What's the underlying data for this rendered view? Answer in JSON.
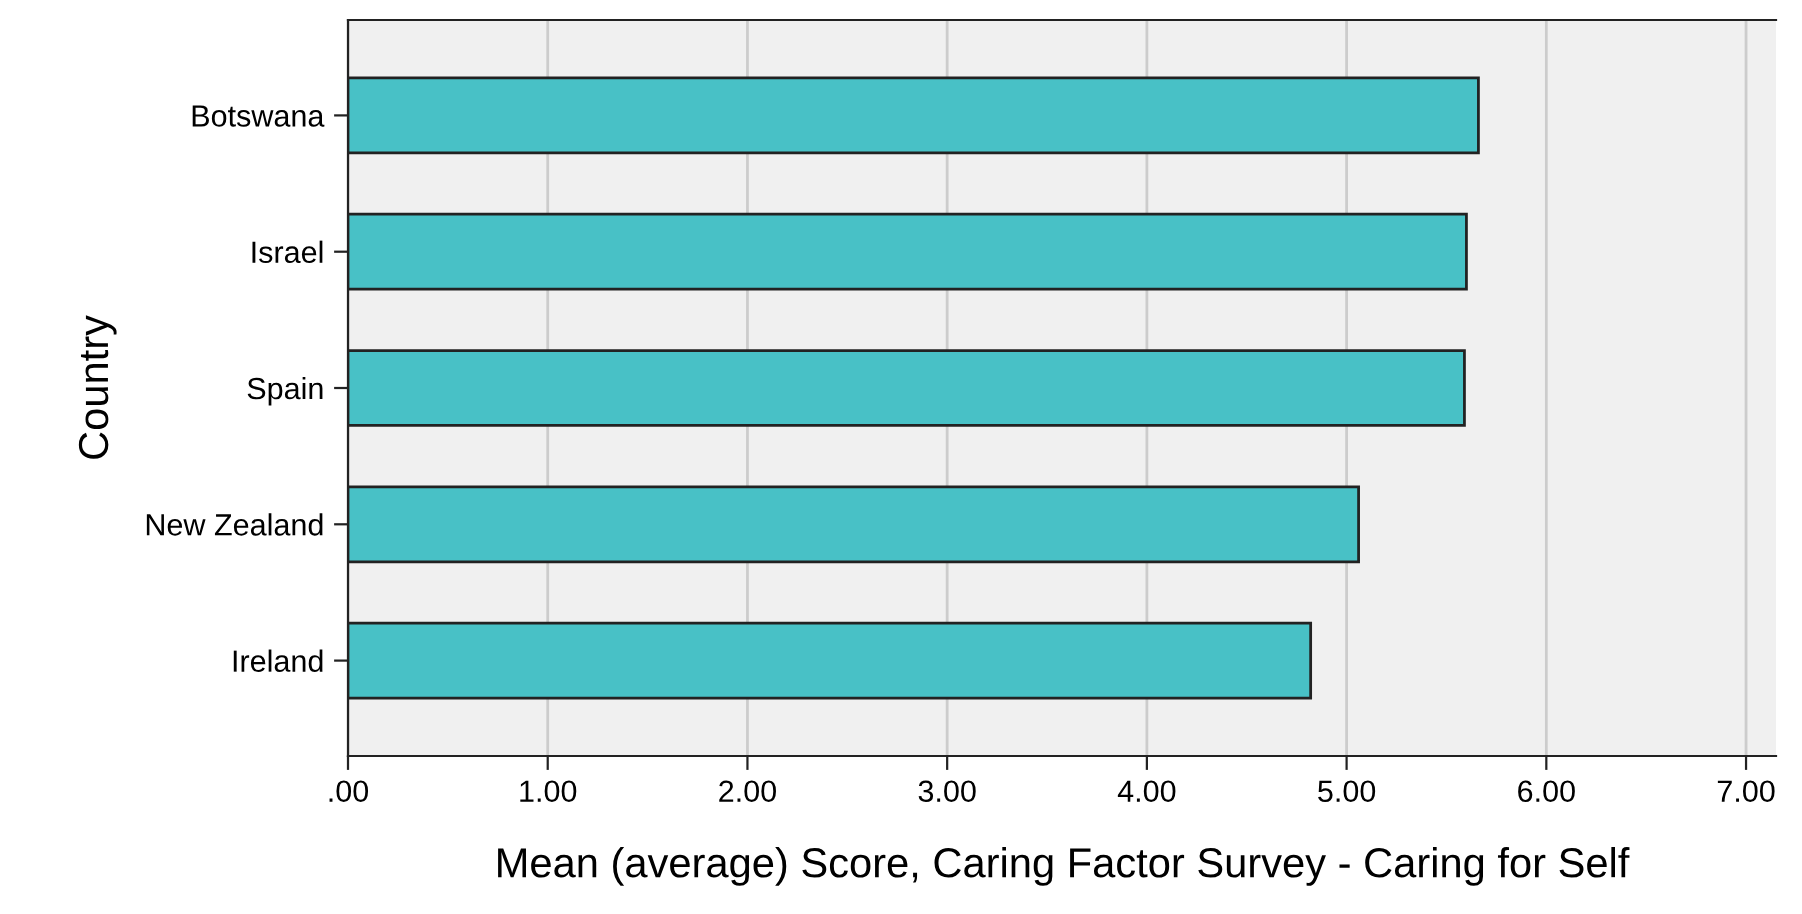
{
  "chart_data": {
    "type": "bar",
    "orientation": "horizontal",
    "xlabel": "Mean (average) Score, Caring Factor Survey - Caring for Self",
    "ylabel": "Country",
    "categories": [
      "Botswana",
      "Israel",
      "Spain",
      "New Zealand",
      "Ireland"
    ],
    "values": [
      5.66,
      5.6,
      5.59,
      5.06,
      4.82
    ],
    "color": "#48c1c6",
    "xlim": [
      0,
      7.15
    ],
    "xticks": [
      {
        "value": 0,
        "label": ".00"
      },
      {
        "value": 1,
        "label": "1.00"
      },
      {
        "value": 2,
        "label": "2.00"
      },
      {
        "value": 3,
        "label": "3.00"
      },
      {
        "value": 4,
        "label": "4.00"
      },
      {
        "value": 5,
        "label": "5.00"
      },
      {
        "value": 6,
        "label": "6.00"
      },
      {
        "value": 7,
        "label": "7.00"
      }
    ],
    "grid": "x"
  }
}
